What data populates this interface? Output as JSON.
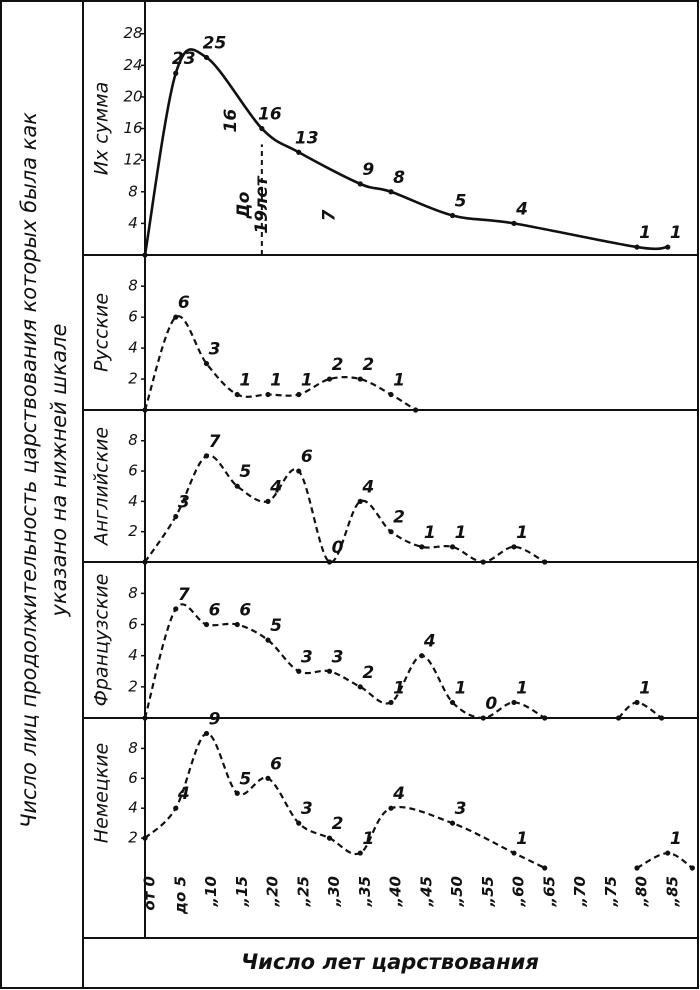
{
  "y_title": [
    "Число лиц продолжительность царствования которых была как",
    "указано на нижней шкале"
  ],
  "x_axis": {
    "label": "Число лет царствования",
    "xlim": [
      0,
      89
    ],
    "xticks": [
      {
        "value": 0,
        "label": "от 0"
      },
      {
        "value": 5,
        "label": "до 5"
      },
      {
        "value": 10,
        "label": "„10"
      },
      {
        "value": 15,
        "label": "„15"
      },
      {
        "value": 20,
        "label": "„20"
      },
      {
        "value": 25,
        "label": "„25"
      },
      {
        "value": 30,
        "label": "„30"
      },
      {
        "value": 35,
        "label": "„35"
      },
      {
        "value": 40,
        "label": "„40"
      },
      {
        "value": 45,
        "label": "„45"
      },
      {
        "value": 50,
        "label": "„50"
      },
      {
        "value": 55,
        "label": "„55"
      },
      {
        "value": 60,
        "label": "„60"
      },
      {
        "value": 65,
        "label": "„65"
      },
      {
        "value": 70,
        "label": "„70"
      },
      {
        "value": 75,
        "label": "„75"
      },
      {
        "value": 80,
        "label": "„80"
      },
      {
        "value": 85,
        "label": "„85"
      }
    ]
  },
  "chart_data": [
    {
      "type": "line",
      "ylabel": "Их сумма",
      "dashed": false,
      "color": "#111",
      "ylim": [
        0,
        31
      ],
      "yticks": [
        4,
        8,
        12,
        16,
        20,
        24,
        28
      ],
      "x": [
        0,
        5,
        10,
        19,
        25,
        35,
        40,
        50,
        60,
        80,
        85
      ],
      "values": [
        0,
        23,
        25,
        16,
        13,
        9,
        8,
        5,
        4,
        1,
        1
      ],
      "value_labels": [
        null,
        "23",
        "25",
        "16",
        "13",
        "9",
        "8",
        "5",
        "4",
        "1",
        "1"
      ],
      "annotations": [
        {
          "text": "16",
          "x": 14,
          "y": 17
        },
        {
          "text": "7",
          "x": 30,
          "y": 5
        }
      ],
      "reference_line": {
        "x": 19,
        "label": [
          "До",
          "19лет"
        ]
      }
    },
    {
      "type": "line",
      "ylabel": "Русские",
      "dashed": true,
      "color": "#111",
      "ylim": [
        0,
        9.5
      ],
      "yticks": [
        2,
        4,
        6,
        8
      ],
      "x": [
        0,
        5,
        10,
        15,
        20,
        25,
        30,
        35,
        40,
        44
      ],
      "values": [
        0,
        6,
        3,
        1,
        1,
        1,
        2,
        2,
        1,
        0
      ],
      "value_labels": [
        null,
        "6",
        "3",
        "1",
        "1",
        "1",
        "2",
        "2",
        "1",
        null
      ]
    },
    {
      "type": "line",
      "ylabel": "Английские",
      "dashed": true,
      "color": "#111",
      "ylim": [
        0,
        9.5
      ],
      "yticks": [
        2,
        4,
        6,
        8
      ],
      "x": [
        0,
        5,
        10,
        15,
        20,
        25,
        30,
        35,
        40,
        45,
        50,
        55,
        60,
        65
      ],
      "values": [
        0,
        3,
        7,
        5,
        4,
        6,
        0,
        4,
        2,
        1,
        1,
        0,
        1,
        0
      ],
      "value_labels": [
        null,
        "3",
        "7",
        "5",
        "4",
        "6",
        "0",
        "4",
        "2",
        "1",
        "1",
        null,
        "1",
        null
      ]
    },
    {
      "type": "line",
      "ylabel": "Французские",
      "dashed": true,
      "color": "#111",
      "ylim": [
        0,
        9.5
      ],
      "yticks": [
        2,
        4,
        6,
        8
      ],
      "x": [
        0,
        5,
        10,
        15,
        20,
        25,
        30,
        35,
        40,
        45,
        50,
        55,
        60,
        65,
        70,
        77,
        80,
        84
      ],
      "values": [
        0,
        7,
        6,
        6,
        5,
        3,
        3,
        2,
        1,
        4,
        1,
        0,
        1,
        0,
        null,
        0,
        1,
        0
      ],
      "value_labels": [
        null,
        "7",
        "6",
        "6",
        "5",
        "3",
        "3",
        "2",
        "1",
        "4",
        "1",
        "0",
        "1",
        null,
        null,
        null,
        "1",
        null
      ]
    },
    {
      "type": "line",
      "ylabel": "Немецкие",
      "dashed": true,
      "color": "#111",
      "ylim": [
        0,
        9.5
      ],
      "yticks": [
        2,
        4,
        6,
        8
      ],
      "x": [
        0,
        5,
        10,
        15,
        20,
        25,
        30,
        35,
        40,
        50,
        60,
        65,
        70,
        80,
        85,
        89
      ],
      "values": [
        2,
        4,
        9,
        5,
        6,
        3,
        2,
        1,
        4,
        3,
        1,
        0,
        null,
        0,
        1,
        0
      ],
      "value_labels": [
        null,
        "4",
        "9",
        "5",
        "6",
        "3",
        "2",
        "1",
        "4",
        "3",
        "1",
        null,
        null,
        null,
        "1",
        null
      ]
    }
  ]
}
